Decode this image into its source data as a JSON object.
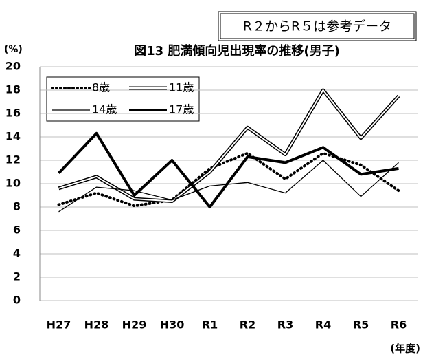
{
  "chart_data": {
    "type": "line",
    "title": "図13 肥満傾向児出現率の推移(男子)",
    "annotation": "R２からR５は参考データ",
    "y_label": "(%)",
    "x_label": "(年度)",
    "categories": [
      "H27",
      "H28",
      "H29",
      "H30",
      "R1",
      "R2",
      "R3",
      "R4",
      "R5",
      "R6"
    ],
    "series": [
      {
        "name": "8歳",
        "color": "#000000",
        "style": "dotted",
        "values": [
          8.2,
          9.2,
          8.1,
          8.6,
          11.3,
          12.6,
          10.4,
          12.6,
          11.6,
          9.4
        ]
      },
      {
        "name": "11歳",
        "color": "#000000",
        "style": "double",
        "values": [
          9.6,
          10.6,
          8.7,
          8.5,
          11.0,
          14.8,
          12.5,
          18.0,
          13.9,
          17.5
        ]
      },
      {
        "name": "14歳",
        "color": "#000000",
        "style": "thin",
        "values": [
          7.6,
          9.7,
          9.4,
          8.6,
          9.8,
          10.1,
          9.2,
          12.0,
          8.9,
          11.8
        ]
      },
      {
        "name": "17歳",
        "color": "#000000",
        "style": "thick",
        "values": [
          10.9,
          14.3,
          9.0,
          12.0,
          8.0,
          12.3,
          11.8,
          13.1,
          10.8,
          11.3
        ]
      }
    ],
    "ylim": [
      0,
      20
    ],
    "yticks": [
      0,
      2,
      4,
      6,
      8,
      10,
      12,
      14,
      16,
      18,
      20
    ],
    "grid": true
  }
}
